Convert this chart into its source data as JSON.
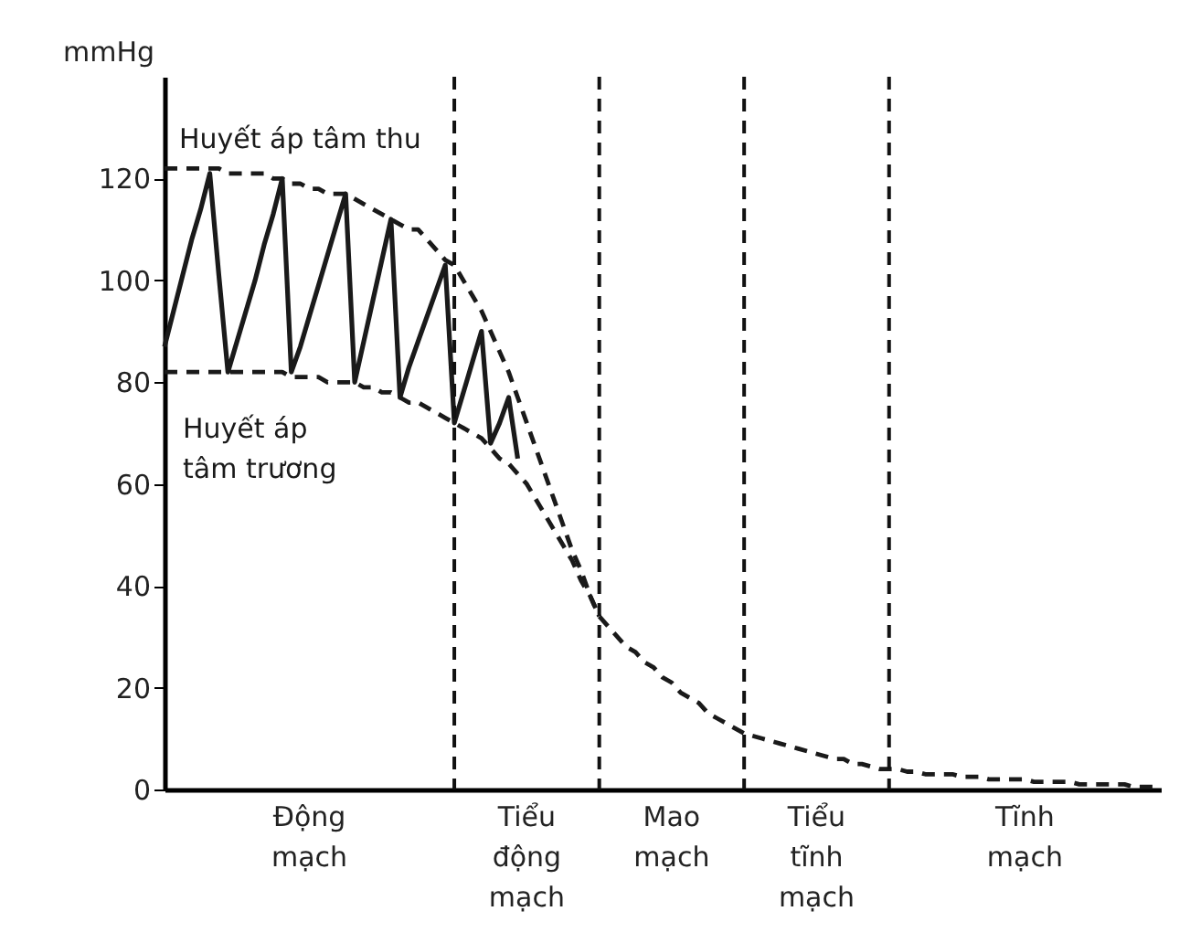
{
  "chart_data": {
    "type": "line",
    "ylabel": "mmHg",
    "ylim": [
      0,
      140
    ],
    "yticks": [
      0,
      20,
      40,
      60,
      80,
      100,
      120
    ],
    "tick_labels": "y",
    "grid": "x",
    "marker": "none",
    "categories": [
      null,
      null,
      null,
      null,
      null,
      null,
      null,
      null,
      null,
      null,
      null,
      null,
      null,
      null,
      null,
      null,
      null,
      null,
      null,
      null,
      null,
      null,
      null,
      null,
      null,
      null,
      null,
      null,
      null,
      null,
      null,
      null,
      null,
      null,
      null,
      null,
      null,
      null,
      null,
      null,
      null,
      null,
      null,
      null,
      null,
      null,
      null,
      null,
      null,
      null,
      null,
      null,
      null,
      null,
      null,
      null,
      null,
      null,
      null,
      null,
      null,
      null,
      null,
      null,
      null,
      null,
      null,
      null,
      null,
      null,
      null,
      null,
      null,
      null,
      null,
      null,
      null,
      null,
      null,
      null,
      null,
      null,
      null,
      null,
      null,
      null,
      null,
      null,
      null,
      null,
      null,
      null,
      null,
      null,
      null,
      null,
      null,
      null,
      null,
      null,
      null,
      null,
      null,
      null,
      null,
      null,
      null,
      null,
      null,
      null,
      null
    ],
    "series": [
      {
        "name": "Huyết áp tâm thu",
        "color": "#1a1a1a",
        "line_style": "dashed",
        "values": [
          122,
          122,
          122,
          122,
          122,
          122,
          122,
          121,
          121,
          121,
          121,
          121,
          120,
          120,
          119,
          119,
          118,
          118,
          117,
          117,
          117,
          116,
          115,
          114,
          113,
          112,
          111,
          110,
          110,
          108,
          106,
          104,
          103,
          100,
          97,
          94,
          90,
          86,
          82,
          77,
          72,
          67,
          62,
          57,
          52,
          47,
          43,
          38,
          34,
          32,
          30,
          28,
          27,
          25,
          24,
          22,
          21,
          19,
          18,
          17,
          15,
          14,
          13,
          12,
          11,
          10.5,
          10,
          9.5,
          9,
          8.5,
          8,
          7.5,
          7,
          6.5,
          6,
          6,
          5,
          5,
          4.5,
          4,
          4,
          4,
          3.5,
          3.5,
          3,
          3,
          3,
          3,
          2.5,
          2.5,
          2.5,
          2,
          2,
          2,
          2,
          2,
          1.5,
          1.5,
          1.5,
          1.5,
          1.5,
          1,
          1,
          1,
          1,
          1,
          1,
          0.5,
          0.5,
          0.5,
          0.5
        ]
      },
      {
        "name": "Huyết áp tâm trương",
        "color": "#1a1a1a",
        "line_style": "dashed",
        "values": [
          82,
          82,
          82,
          82,
          82,
          82,
          82,
          82,
          82,
          82,
          82,
          82,
          82,
          82,
          81,
          81,
          81,
          81,
          80,
          80,
          80,
          80,
          79,
          79,
          78,
          78,
          77,
          76,
          76,
          75,
          74,
          73,
          72,
          71,
          70,
          69,
          67,
          65,
          64,
          62,
          60,
          57,
          54,
          51,
          48,
          45,
          41,
          38,
          34,
          null,
          null,
          null,
          null,
          null,
          null,
          null,
          null,
          null,
          null,
          null,
          null,
          null,
          null,
          null,
          null,
          null,
          null,
          null,
          null,
          null,
          null,
          null,
          null,
          null,
          null,
          null,
          null,
          null,
          null,
          null,
          null,
          null,
          null,
          null,
          null,
          null,
          null,
          null,
          null,
          null,
          null,
          null,
          null,
          null,
          null,
          null,
          null,
          null,
          null,
          null,
          null,
          null,
          null,
          null,
          null,
          null,
          null,
          null,
          null,
          null,
          null
        ]
      },
      {
        "color": "#1a1a1a",
        "line_style": "solid",
        "values": [
          87,
          94,
          101,
          108,
          114,
          121,
          101,
          82,
          88,
          94,
          100,
          107,
          113,
          120,
          82,
          87,
          93,
          99,
          105,
          111,
          117,
          80,
          88,
          96,
          104,
          112,
          77,
          83,
          88,
          93,
          98,
          103,
          72,
          78,
          84,
          90,
          68,
          72,
          77,
          65,
          null,
          null,
          null,
          null,
          null,
          null,
          null,
          null,
          null,
          null,
          null,
          null,
          null,
          null,
          null,
          null,
          null,
          null,
          null,
          null,
          null,
          null,
          null,
          null,
          null,
          null,
          null,
          null,
          null,
          null,
          null,
          null,
          null,
          null,
          null,
          null,
          null,
          null,
          null,
          null,
          null,
          null,
          null,
          null,
          null,
          null,
          null,
          null,
          null,
          null,
          null,
          null,
          null,
          null,
          null,
          null,
          null,
          null,
          null,
          null,
          null,
          null,
          null,
          null,
          null,
          null,
          null,
          null,
          null,
          null,
          null
        ]
      }
    ],
    "annotations": [
      "Động mạch",
      "Tiểu động mạch",
      "Mao mạch",
      "Tiểu tĩnh mạch",
      "Tĩnh mạch"
    ]
  }
}
